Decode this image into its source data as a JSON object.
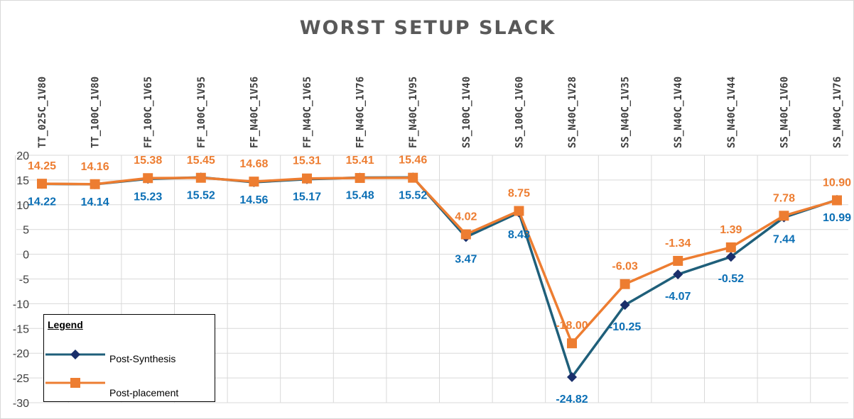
{
  "chart_data": {
    "type": "line",
    "title": "WORST SETUP SLACK",
    "xlabel": "",
    "ylabel": "",
    "categories": [
      "TT_025C_1V80",
      "TT_100C_1V80",
      "FF_100C_1V65",
      "FF_100C_1V95",
      "FF_N40C_1V56",
      "FF_N40C_1V65",
      "FF_N40C_1V76",
      "FF_N40C_1V95",
      "SS_100C_1V40",
      "SS_100C_1V60",
      "SS_N40C_1V28",
      "SS_N40C_1V35",
      "SS_N40C_1V40",
      "SS_N40C_1V44",
      "SS_N40C_1V60",
      "SS_N40C_1V76"
    ],
    "ylim": [
      -30,
      20
    ],
    "yticks": [
      "20",
      "15",
      "10",
      "5",
      "0",
      "-5",
      "-10",
      "-15",
      "-20",
      "-25",
      "-30"
    ],
    "grid": true,
    "legend_position": "bottom-left",
    "series": [
      {
        "name": "Post-Synthesis",
        "color": "#1f5f7a",
        "marker_color": "#1a2f6b",
        "label_color": "#0b6fb5",
        "marker": "diamond",
        "values": [
          14.22,
          14.14,
          15.23,
          15.52,
          14.56,
          15.17,
          15.48,
          15.52,
          3.47,
          8.43,
          -24.82,
          -10.25,
          -4.07,
          -0.52,
          7.44,
          10.99
        ],
        "labels": [
          "14.22",
          "14.14",
          "15.23",
          "15.52",
          "14.56",
          "15.17",
          "15.48",
          "15.52",
          "3.47",
          "8.43",
          "-24.82",
          "-10.25",
          "-4.07",
          "-0.52",
          "7.44",
          "10.99"
        ]
      },
      {
        "name": "Post-placement",
        "color": "#ed7d31",
        "marker_color": "#ed7d31",
        "label_color": "#ed7d31",
        "marker": "square",
        "values": [
          14.25,
          14.16,
          15.38,
          15.45,
          14.68,
          15.31,
          15.41,
          15.46,
          4.02,
          8.75,
          -18.0,
          -6.03,
          -1.34,
          1.39,
          7.78,
          10.9
        ],
        "labels": [
          "14.25",
          "14.16",
          "15.38",
          "15.45",
          "14.68",
          "15.31",
          "15.41",
          "15.46",
          "4.02",
          "8.75",
          "-18.00",
          "-6.03",
          "-1.34",
          "1.39",
          "7.78",
          "10.90"
        ]
      }
    ]
  },
  "legend": {
    "title": "Legend",
    "items": [
      "Post-Synthesis",
      "Post-placement"
    ]
  }
}
